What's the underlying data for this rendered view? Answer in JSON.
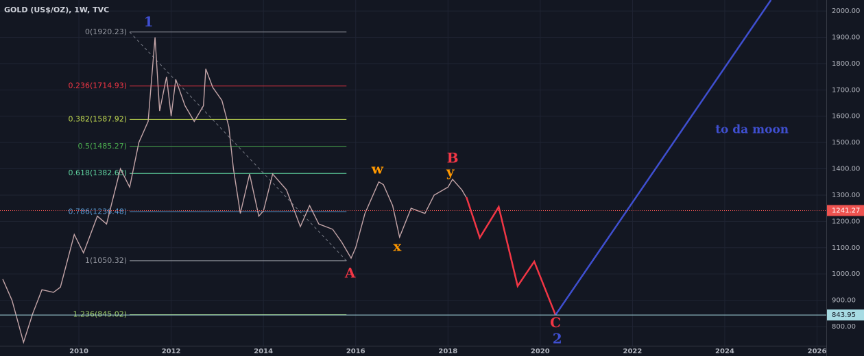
{
  "chart_data": {
    "type": "line",
    "title": "GOLD (US$/OZ), 1W, TVC",
    "color": "#c4a5a8",
    "x": [
      2008.35,
      2008.55,
      2008.8,
      2009.0,
      2009.2,
      2009.45,
      2009.6,
      2009.9,
      2010.1,
      2010.4,
      2010.6,
      2010.9,
      2011.1,
      2011.3,
      2011.5,
      2011.65,
      2011.75,
      2011.9,
      2012.0,
      2012.1,
      2012.3,
      2012.5,
      2012.7,
      2012.75,
      2012.9,
      2013.1,
      2013.25,
      2013.35,
      2013.5,
      2013.7,
      2013.9,
      2014.0,
      2014.2,
      2014.5,
      2014.8,
      2015.0,
      2015.2,
      2015.5,
      2015.7,
      2015.9,
      2016.0,
      2016.2,
      2016.5,
      2016.6,
      2016.8,
      2016.95,
      2017.2,
      2017.5,
      2017.7,
      2018.0,
      2018.1,
      2018.3,
      2018.4
    ],
    "values": [
      980,
      900,
      740,
      850,
      940,
      930,
      950,
      1150,
      1080,
      1220,
      1190,
      1400,
      1330,
      1500,
      1580,
      1900,
      1620,
      1750,
      1600,
      1740,
      1640,
      1580,
      1640,
      1780,
      1710,
      1660,
      1560,
      1400,
      1230,
      1380,
      1220,
      1240,
      1380,
      1320,
      1180,
      1260,
      1190,
      1170,
      1120,
      1060,
      1100,
      1230,
      1350,
      1340,
      1260,
      1140,
      1250,
      1230,
      1300,
      1330,
      1360,
      1320,
      1290
    ],
    "xlim": [
      2008.29,
      2026.2
    ],
    "ylim": [
      727,
      2042
    ],
    "xticks": [
      2010,
      2012,
      2014,
      2016,
      2018,
      2020,
      2022,
      2024,
      2026
    ],
    "yticks": [
      {
        "value": 800,
        "label": "800.00"
      },
      {
        "value": 900,
        "label": "900.00"
      },
      {
        "value": 1000,
        "label": "1000.00"
      },
      {
        "value": 1100,
        "label": "1100.00"
      },
      {
        "value": 1200,
        "label": "1200.00"
      },
      {
        "value": 1300,
        "label": "1300.00"
      },
      {
        "value": 1400,
        "label": "1400.00"
      },
      {
        "value": 1500,
        "label": "1500.00"
      },
      {
        "value": 1600,
        "label": "1600.00"
      },
      {
        "value": 1700,
        "label": "1700.00"
      },
      {
        "value": 1800,
        "label": "1800.00"
      },
      {
        "value": 1900,
        "label": "1900.00"
      },
      {
        "value": 2000,
        "label": "2000.00"
      }
    ],
    "grid": true,
    "fib": {
      "x": [
        2011.1,
        2015.8
      ],
      "levels": [
        {
          "label": "0(1920.23)",
          "value": 1920.23,
          "color": "#9598a1"
        },
        {
          "label": "0.236(1714.93)",
          "value": 1714.93,
          "color": "#f23645"
        },
        {
          "label": "0.382(1587.92)",
          "value": 1587.92,
          "color": "#c0d850"
        },
        {
          "label": "0.5(1485.27)",
          "value": 1485.27,
          "color": "#4caf50"
        },
        {
          "label": "0.618(1382.63)",
          "value": 1382.63,
          "color": "#5fd3a0"
        },
        {
          "label": "0.786(1236.48)",
          "value": 1236.48,
          "color": "#5b9bd5"
        },
        {
          "label": "1(1050.32)",
          "value": 1050.32,
          "color": "#9598a1"
        },
        {
          "label": "1.236(845.02)",
          "value": 845.02,
          "color": "#9ccc65"
        }
      ]
    },
    "price_lines": [
      {
        "value": 1241.27,
        "color": "#ef5350"
      },
      {
        "value": 843.95,
        "color": "#a7dbe3"
      }
    ],
    "projection": {
      "color": "#f23645",
      "x": [
        2018.4,
        2018.69,
        2019.1,
        2019.51,
        2019.87,
        2020.33
      ],
      "values": [
        1292,
        1138,
        1255,
        954,
        1047,
        843.95
      ]
    },
    "target": {
      "color": "#3f4fd0",
      "x": [
        2020.33,
        2025.0
      ],
      "values": [
        843.95,
        2042
      ]
    },
    "annotations": [
      {
        "text": "1",
        "x": 2011.51,
        "y": 1956,
        "color": "#3f4fd0"
      },
      {
        "text": "w",
        "x": 2016.47,
        "y": 1396,
        "color": "#ff9800"
      },
      {
        "text": "B",
        "x": 2018.1,
        "y": 1438,
        "color": "#f23645"
      },
      {
        "text": "y",
        "x": 2018.05,
        "y": 1386,
        "color": "#ff9800"
      },
      {
        "text": "x",
        "x": 2016.9,
        "y": 1102,
        "color": "#ff9800"
      },
      {
        "text": "A",
        "x": 2015.88,
        "y": 1000,
        "color": "#f23645"
      },
      {
        "text": "C",
        "x": 2020.33,
        "y": 811,
        "color": "#f23645"
      },
      {
        "text": "2",
        "x": 2020.37,
        "y": 751,
        "color": "#3f4fd0"
      },
      {
        "text": "to da moon",
        "x": 2024.59,
        "y": 1547,
        "color": "#3f4fd0"
      }
    ]
  }
}
